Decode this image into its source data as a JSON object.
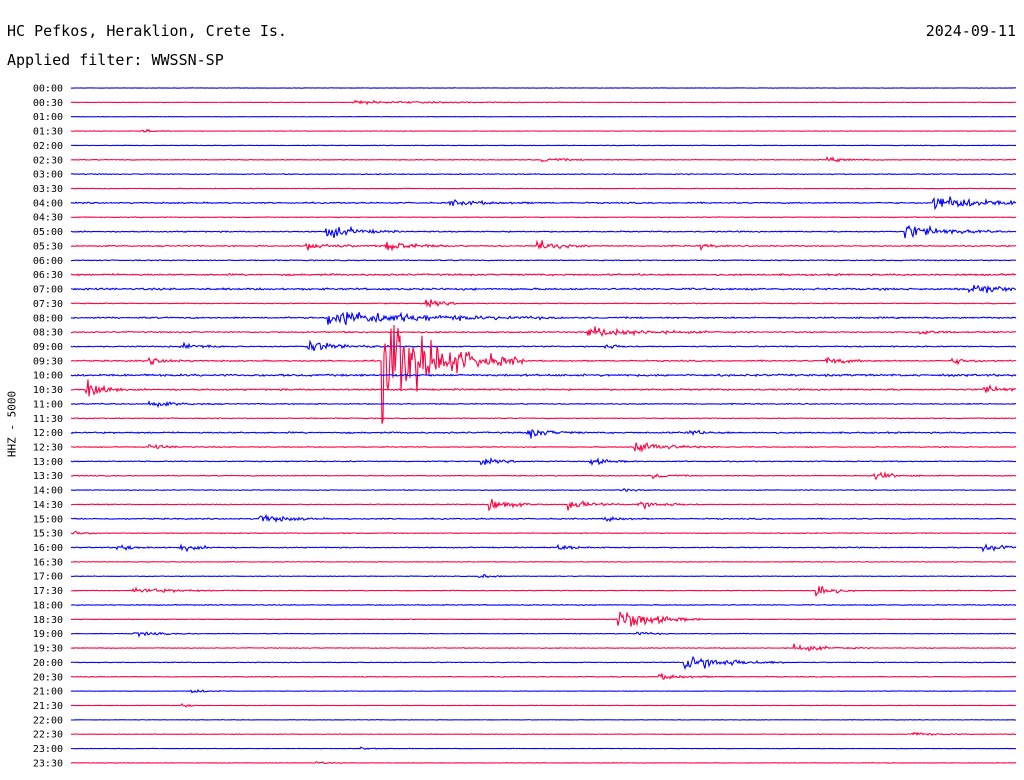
{
  "header": {
    "station": "HC Pefkos, Heraklion, Crete Is.",
    "date": "2024-09-11",
    "filter": "Applied filter: WWSSN-SP"
  },
  "chart_data": {
    "type": "line",
    "title": "HC Pefkos, Heraklion, Crete Is.",
    "subtitle": "Applied filter: WWSSN-SP",
    "ylabel": "HHZ - 5000",
    "xlabel": "",
    "grid": false,
    "colors": [
      "#0000ff",
      "#ff0040"
    ],
    "row_labels": [
      "00:00",
      "00:30",
      "01:00",
      "01:30",
      "02:00",
      "02:30",
      "03:00",
      "03:30",
      "04:00",
      "04:30",
      "05:00",
      "05:30",
      "06:00",
      "06:30",
      "07:00",
      "07:30",
      "08:00",
      "08:30",
      "09:00",
      "09:30",
      "10:00",
      "10:30",
      "11:00",
      "11:30",
      "12:00",
      "12:30",
      "13:00",
      "13:30",
      "14:00",
      "14:30",
      "15:00",
      "15:30",
      "16:00",
      "16:30",
      "17:00",
      "17:30",
      "18:00",
      "18:30",
      "19:00",
      "19:30",
      "20:00",
      "20:30",
      "21:00",
      "21:30",
      "22:00",
      "22:30",
      "23:00",
      "23:30"
    ],
    "row_minutes": 30,
    "row_noise": [
      0.3,
      0.3,
      0.25,
      0.3,
      0.4,
      0.5,
      0.6,
      0.5,
      0.9,
      0.5,
      0.8,
      0.8,
      0.7,
      1.2,
      1.3,
      0.6,
      1.0,
      0.9,
      0.8,
      0.9,
      1.4,
      1.1,
      0.7,
      0.6,
      1.0,
      0.6,
      0.7,
      0.6,
      0.5,
      0.6,
      0.8,
      0.5,
      0.7,
      0.4,
      0.4,
      0.5,
      0.6,
      0.5,
      0.4,
      0.5,
      0.5,
      0.5,
      0.3,
      0.3,
      0.3,
      0.3,
      0.3,
      0.3
    ],
    "events": [
      {
        "row": 1,
        "minute": 9.0,
        "amp": 2,
        "dur": 2.5
      },
      {
        "row": 3,
        "minute": 2.3,
        "amp": 3,
        "dur": 0.3
      },
      {
        "row": 5,
        "minute": 15.0,
        "amp": 3,
        "dur": 0.6
      },
      {
        "row": 5,
        "minute": 24.0,
        "amp": 3,
        "dur": 0.6
      },
      {
        "row": 8,
        "minute": 12.0,
        "amp": 4,
        "dur": 1.0
      },
      {
        "row": 8,
        "minute": 27.4,
        "amp": 10,
        "dur": 1.5
      },
      {
        "row": 10,
        "minute": 8.1,
        "amp": 10,
        "dur": 0.8
      },
      {
        "row": 10,
        "minute": 26.5,
        "amp": 11,
        "dur": 1.0
      },
      {
        "row": 11,
        "minute": 7.5,
        "amp": 5,
        "dur": 0.8
      },
      {
        "row": 11,
        "minute": 10.0,
        "amp": 7,
        "dur": 0.8
      },
      {
        "row": 11,
        "minute": 14.8,
        "amp": 8,
        "dur": 0.6
      },
      {
        "row": 11,
        "minute": 20.0,
        "amp": 4,
        "dur": 0.3
      },
      {
        "row": 14,
        "minute": 28.5,
        "amp": 9,
        "dur": 0.8
      },
      {
        "row": 15,
        "minute": 11.3,
        "amp": 5,
        "dur": 0.5
      },
      {
        "row": 16,
        "minute": 8.2,
        "amp": 12,
        "dur": 2.5
      },
      {
        "row": 17,
        "minute": 16.4,
        "amp": 7,
        "dur": 1.4
      },
      {
        "row": 17,
        "minute": 27.0,
        "amp": 4,
        "dur": 0.4
      },
      {
        "row": 18,
        "minute": 3.5,
        "amp": 5,
        "dur": 0.6
      },
      {
        "row": 18,
        "minute": 7.5,
        "amp": 8,
        "dur": 0.9
      },
      {
        "row": 18,
        "minute": 17.0,
        "amp": 3,
        "dur": 0.4
      },
      {
        "row": 19,
        "minute": 9.9,
        "amp": 75,
        "dur": 1.5
      },
      {
        "row": 19,
        "minute": 2.5,
        "amp": 4,
        "dur": 0.6
      },
      {
        "row": 19,
        "minute": 24.0,
        "amp": 5,
        "dur": 0.6
      },
      {
        "row": 19,
        "minute": 28.0,
        "amp": 4,
        "dur": 0.5
      },
      {
        "row": 21,
        "minute": 0.5,
        "amp": 22,
        "dur": 0.4
      },
      {
        "row": 21,
        "minute": 29.0,
        "amp": 5,
        "dur": 0.6
      },
      {
        "row": 22,
        "minute": 2.5,
        "amp": 4,
        "dur": 0.7
      },
      {
        "row": 24,
        "minute": 14.5,
        "amp": 7,
        "dur": 0.6
      },
      {
        "row": 24,
        "minute": 19.5,
        "amp": 4,
        "dur": 0.5
      },
      {
        "row": 25,
        "minute": 17.9,
        "amp": 9,
        "dur": 0.9
      },
      {
        "row": 25,
        "minute": 2.5,
        "amp": 4,
        "dur": 0.5
      },
      {
        "row": 26,
        "minute": 13.0,
        "amp": 4,
        "dur": 0.6
      },
      {
        "row": 26,
        "minute": 16.5,
        "amp": 5,
        "dur": 0.5
      },
      {
        "row": 27,
        "minute": 25.5,
        "amp": 6,
        "dur": 0.5
      },
      {
        "row": 27,
        "minute": 18.5,
        "amp": 4,
        "dur": 0.4
      },
      {
        "row": 28,
        "minute": 17.5,
        "amp": 3,
        "dur": 0.3
      },
      {
        "row": 29,
        "minute": 13.3,
        "amp": 9,
        "dur": 0.6
      },
      {
        "row": 29,
        "minute": 15.8,
        "amp": 7,
        "dur": 0.6
      },
      {
        "row": 29,
        "minute": 18.0,
        "amp": 6,
        "dur": 0.7
      },
      {
        "row": 30,
        "minute": 6.0,
        "amp": 7,
        "dur": 0.7
      },
      {
        "row": 30,
        "minute": 17.0,
        "amp": 4,
        "dur": 0.4
      },
      {
        "row": 31,
        "minute": 0.1,
        "amp": 4,
        "dur": 0.3
      },
      {
        "row": 32,
        "minute": 1.5,
        "amp": 4,
        "dur": 0.6
      },
      {
        "row": 32,
        "minute": 3.5,
        "amp": 4,
        "dur": 0.6
      },
      {
        "row": 32,
        "minute": 15.5,
        "amp": 3,
        "dur": 0.5
      },
      {
        "row": 32,
        "minute": 29.0,
        "amp": 7,
        "dur": 0.7
      },
      {
        "row": 34,
        "minute": 13.0,
        "amp": 3,
        "dur": 0.4
      },
      {
        "row": 35,
        "minute": 2.0,
        "amp": 4,
        "dur": 1.2
      },
      {
        "row": 35,
        "minute": 23.7,
        "amp": 13,
        "dur": 0.4
      },
      {
        "row": 37,
        "minute": 17.4,
        "amp": 18,
        "dur": 0.9
      },
      {
        "row": 38,
        "minute": 18.0,
        "amp": 3,
        "dur": 0.4
      },
      {
        "row": 38,
        "minute": 2.0,
        "amp": 3,
        "dur": 0.8
      },
      {
        "row": 39,
        "minute": 23.0,
        "amp": 5,
        "dur": 0.8
      },
      {
        "row": 40,
        "minute": 19.5,
        "amp": 13,
        "dur": 1.1
      },
      {
        "row": 41,
        "minute": 18.7,
        "amp": 4,
        "dur": 0.8
      },
      {
        "row": 42,
        "minute": 3.8,
        "amp": 3,
        "dur": 0.5
      },
      {
        "row": 43,
        "minute": 3.5,
        "amp": 3,
        "dur": 0.3
      },
      {
        "row": 45,
        "minute": 26.6,
        "amp": 3,
        "dur": 0.8
      },
      {
        "row": 46,
        "minute": 9.2,
        "amp": 2,
        "dur": 0.4
      },
      {
        "row": 47,
        "minute": 7.8,
        "amp": 2,
        "dur": 0.3
      }
    ]
  }
}
